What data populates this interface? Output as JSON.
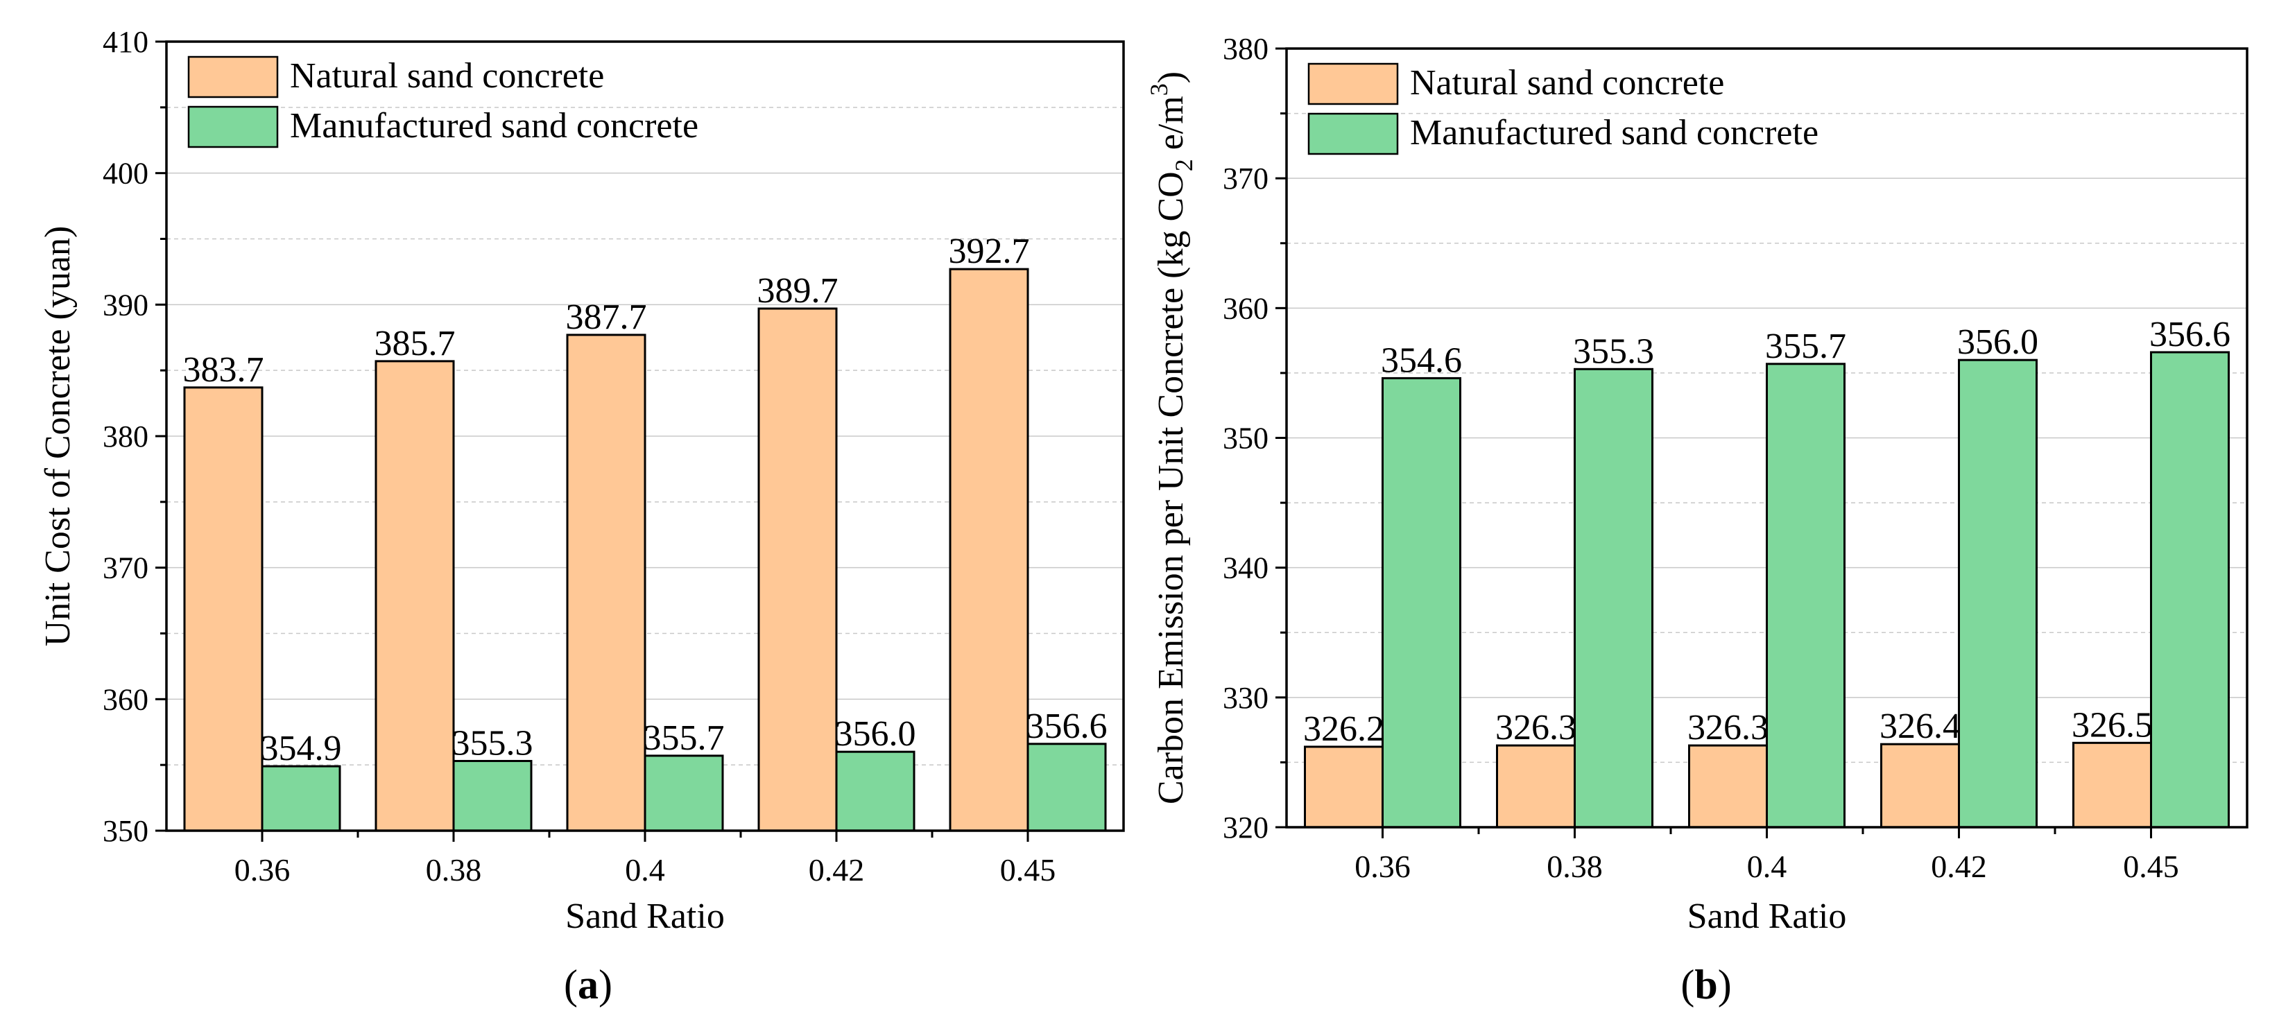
{
  "colors": {
    "natural": "#FFC896",
    "manufactured": "#7FD89C",
    "axis": "#000000",
    "grid": "#C8C8C8"
  },
  "chart_data": [
    {
      "panel_label_bold": "a",
      "panel_label_open": "(",
      "panel_label_close": ")",
      "type": "bar",
      "xlabel": "Sand Ratio",
      "ylabel": "Unit Cost of Concrete (yuan)",
      "categories": [
        "0.36",
        "0.38",
        "0.4",
        "0.42",
        "0.45"
      ],
      "ylim": [
        350,
        410
      ],
      "yticks": [
        "350",
        "360",
        "370",
        "380",
        "390",
        "400",
        "410"
      ],
      "grid": true,
      "legend_position": "top-left",
      "series": [
        {
          "name": "Natural sand concrete",
          "values": [
            383.7,
            385.7,
            387.7,
            389.7,
            392.7
          ],
          "labels": [
            "383.7",
            "385.7",
            "387.7",
            "389.7",
            "392.7"
          ]
        },
        {
          "name": "Manufactured sand concrete",
          "values": [
            354.9,
            355.3,
            355.7,
            356.0,
            356.6
          ],
          "labels": [
            "354.9",
            "355.3",
            "355.7",
            "356.0",
            "356.6"
          ]
        }
      ]
    },
    {
      "panel_label_bold": "b",
      "panel_label_open": "(",
      "panel_label_close": ")",
      "type": "bar",
      "xlabel": "Sand Ratio",
      "ylabel_parts": [
        "Carbon Emission per Unit Concrete (kg CO",
        "2",
        " e/m",
        "3",
        ")"
      ],
      "categories": [
        "0.36",
        "0.38",
        "0.4",
        "0.42",
        "0.45"
      ],
      "ylim": [
        320,
        380
      ],
      "yticks": [
        "320",
        "330",
        "340",
        "350",
        "360",
        "370",
        "380"
      ],
      "grid": true,
      "legend_position": "top-left",
      "series": [
        {
          "name": "Natural sand concrete",
          "values": [
            326.2,
            326.3,
            326.3,
            326.4,
            326.5
          ],
          "labels": [
            "326.2",
            "326.3",
            "326.3",
            "326.4",
            "326.5"
          ]
        },
        {
          "name": "Manufactured sand concrete",
          "values": [
            354.6,
            355.3,
            355.7,
            356.0,
            356.6
          ],
          "labels": [
            "354.6",
            "355.3",
            "355.7",
            "356.0",
            "356.6"
          ]
        }
      ]
    }
  ]
}
